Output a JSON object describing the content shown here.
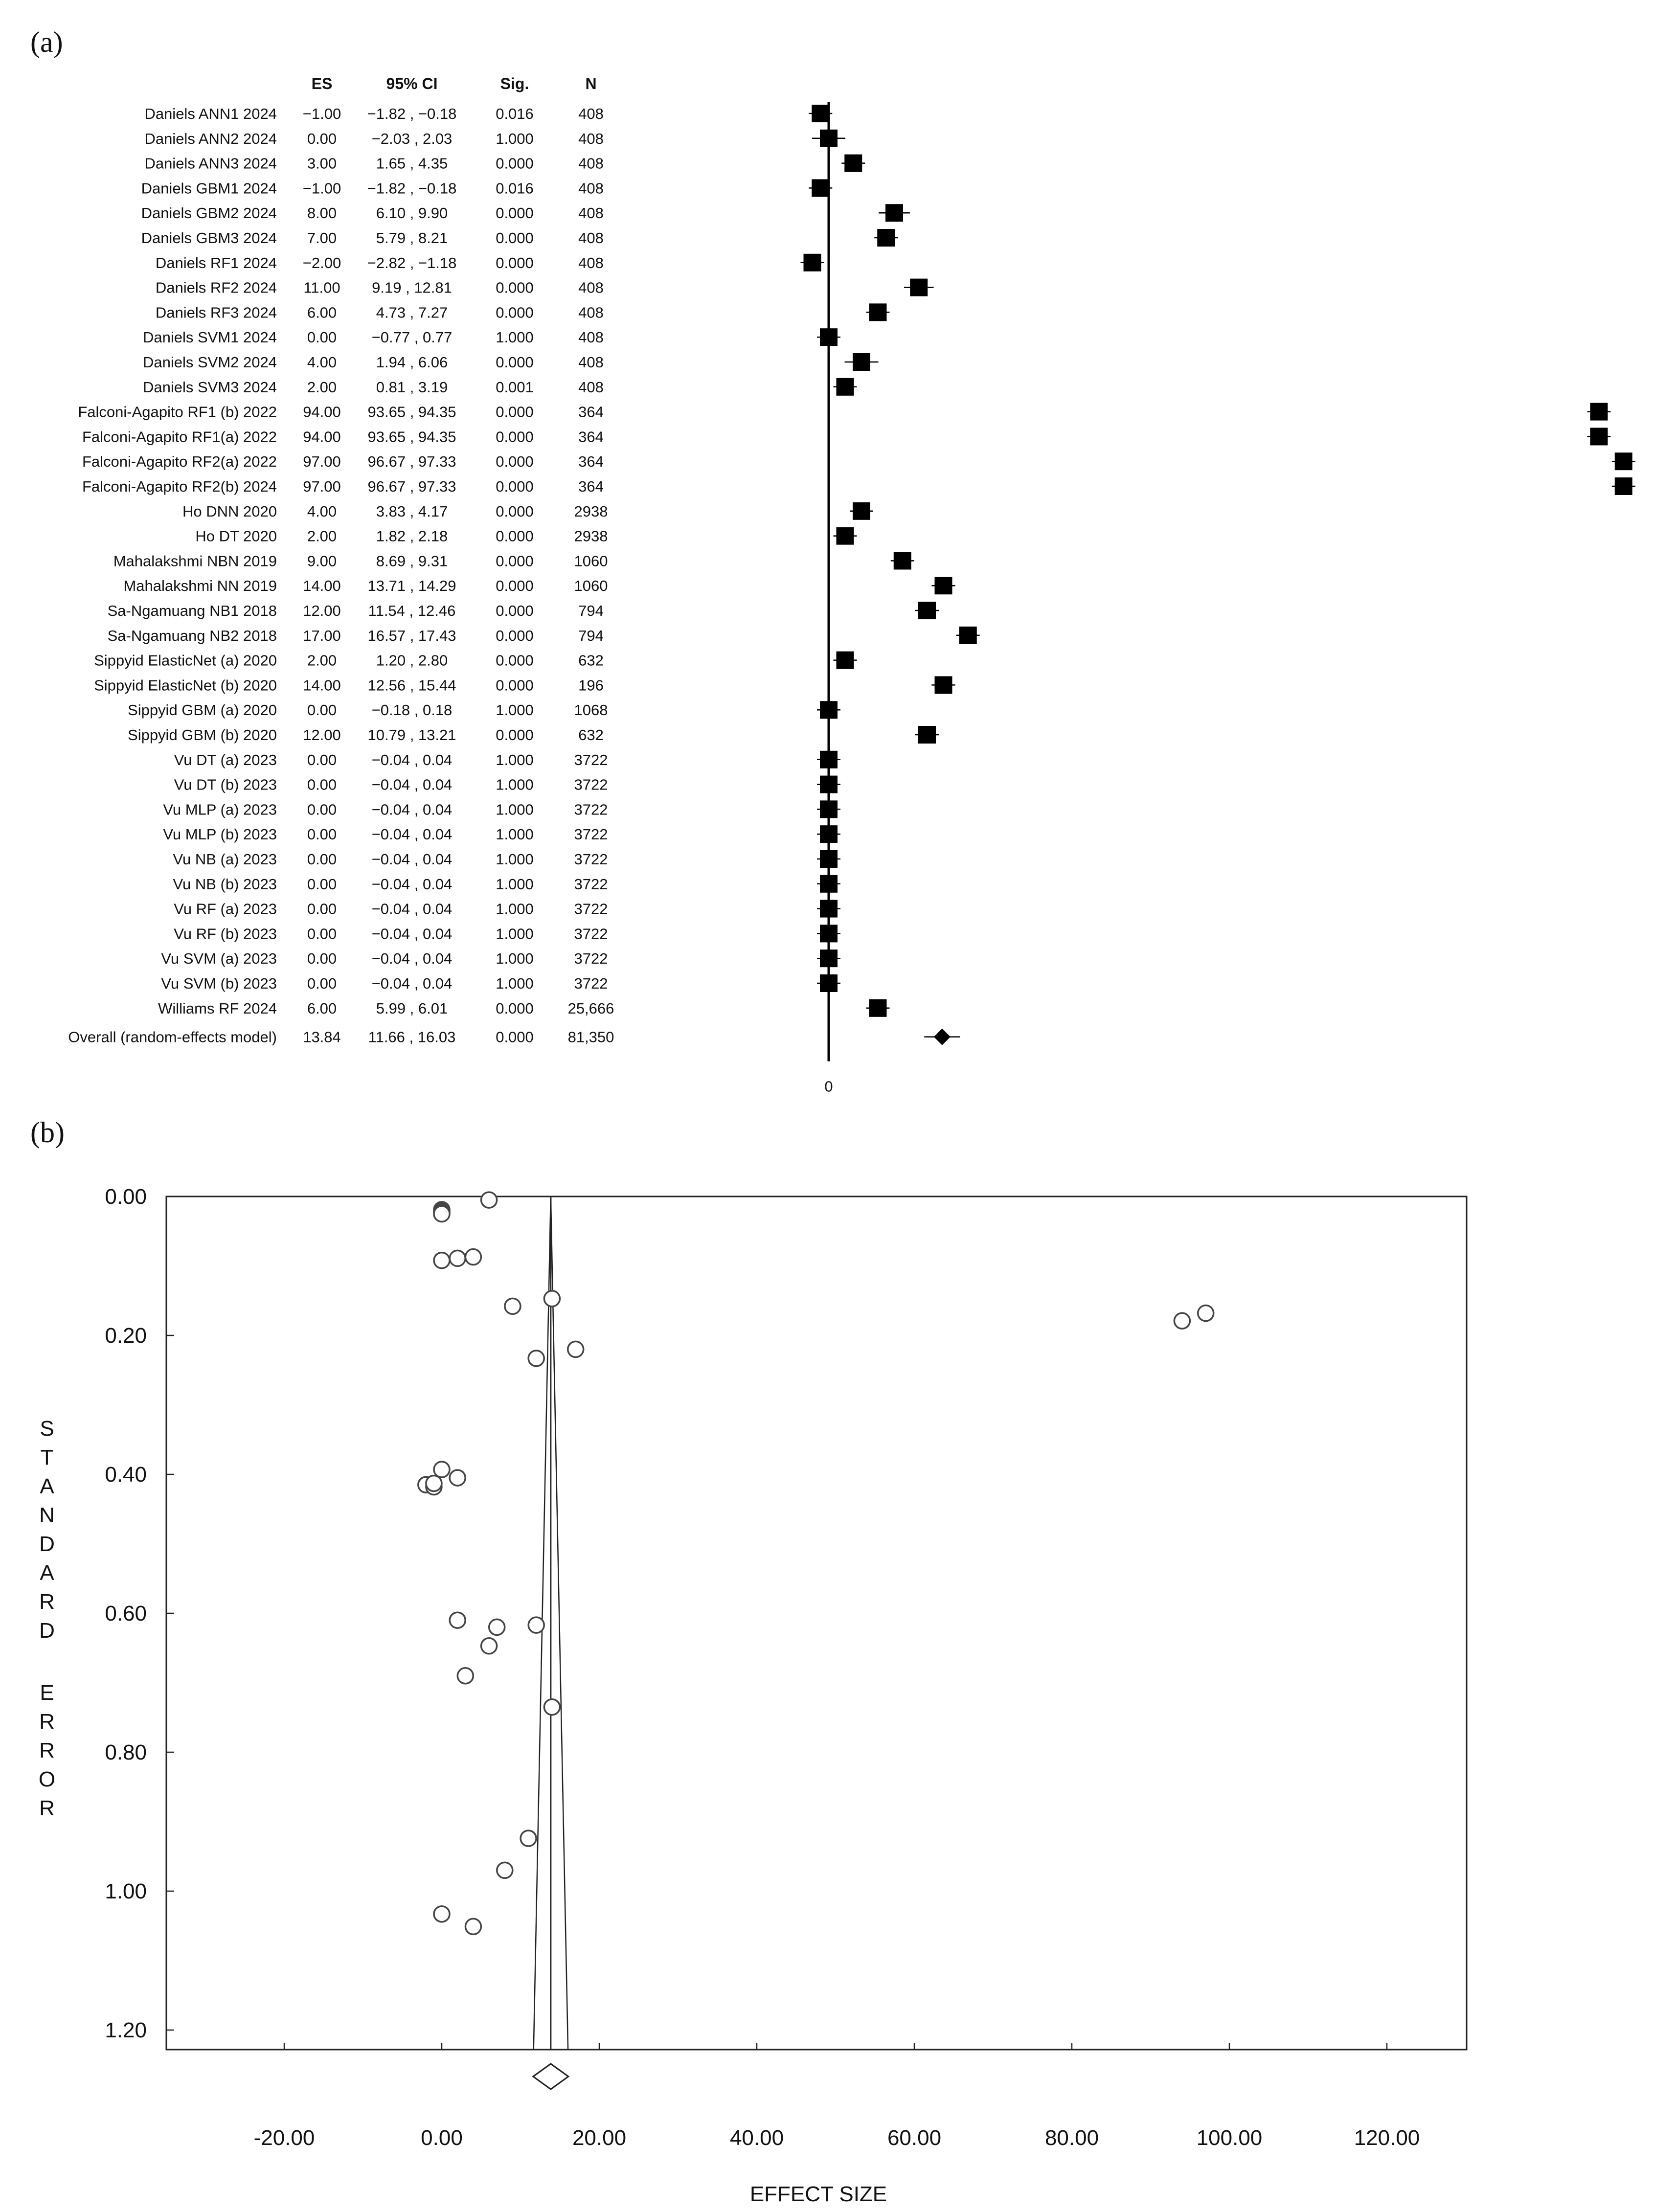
{
  "panel_a_label": "(a)",
  "panel_b_label": "(b)",
  "chart_data": [
    {
      "type": "table",
      "columns": [
        "ES",
        "95% CI",
        "Sig.",
        "N"
      ],
      "zero_label": "0",
      "rows": [
        {
          "study": "Daniels ANN1 2024",
          "es": -1.0,
          "ci": [
            -1.82,
            -0.18
          ],
          "es_text": "−1.00",
          "ci_text": "−1.82 , −0.18",
          "sig": "0.016",
          "n": "408"
        },
        {
          "study": "Daniels ANN2 2024",
          "es": 0.0,
          "ci": [
            -2.03,
            2.03
          ],
          "es_text": "0.00",
          "ci_text": "−2.03 , 2.03",
          "sig": "1.000",
          "n": "408"
        },
        {
          "study": "Daniels ANN3 2024",
          "es": 3.0,
          "ci": [
            1.65,
            4.35
          ],
          "es_text": "3.00",
          "ci_text": "1.65 , 4.35",
          "sig": "0.000",
          "n": "408"
        },
        {
          "study": "Daniels GBM1 2024",
          "es": -1.0,
          "ci": [
            -1.82,
            -0.18
          ],
          "es_text": "−1.00",
          "ci_text": "−1.82 , −0.18",
          "sig": "0.016",
          "n": "408"
        },
        {
          "study": "Daniels GBM2 2024",
          "es": 8.0,
          "ci": [
            6.1,
            9.9
          ],
          "es_text": "8.00",
          "ci_text": "6.10 , 9.90",
          "sig": "0.000",
          "n": "408"
        },
        {
          "study": "Daniels GBM3 2024",
          "es": 7.0,
          "ci": [
            5.79,
            8.21
          ],
          "es_text": "7.00",
          "ci_text": "5.79 , 8.21",
          "sig": "0.000",
          "n": "408"
        },
        {
          "study": "Daniels RF1 2024",
          "es": -2.0,
          "ci": [
            -2.82,
            -1.18
          ],
          "es_text": "−2.00",
          "ci_text": "−2.82 , −1.18",
          "sig": "0.000",
          "n": "408"
        },
        {
          "study": "Daniels RF2 2024",
          "es": 11.0,
          "ci": [
            9.19,
            12.81
          ],
          "es_text": "11.00",
          "ci_text": "9.19 , 12.81",
          "sig": "0.000",
          "n": "408"
        },
        {
          "study": "Daniels RF3 2024",
          "es": 6.0,
          "ci": [
            4.73,
            7.27
          ],
          "es_text": "6.00",
          "ci_text": "4.73 , 7.27",
          "sig": "0.000",
          "n": "408"
        },
        {
          "study": "Daniels SVM1 2024",
          "es": 0.0,
          "ci": [
            -0.77,
            0.77
          ],
          "es_text": "0.00",
          "ci_text": "−0.77 , 0.77",
          "sig": "1.000",
          "n": "408"
        },
        {
          "study": "Daniels SVM2 2024",
          "es": 4.0,
          "ci": [
            1.94,
            6.06
          ],
          "es_text": "4.00",
          "ci_text": "1.94 , 6.06",
          "sig": "0.000",
          "n": "408"
        },
        {
          "study": "Daniels SVM3 2024",
          "es": 2.0,
          "ci": [
            0.81,
            3.19
          ],
          "es_text": "2.00",
          "ci_text": "0.81 , 3.19",
          "sig": "0.001",
          "n": "408"
        },
        {
          "study": "Falconi-Agapito RF1 (b) 2022",
          "es": 94.0,
          "ci": [
            93.65,
            94.35
          ],
          "es_text": "94.00",
          "ci_text": "93.65 , 94.35",
          "sig": "0.000",
          "n": "364"
        },
        {
          "study": "Falconi-Agapito RF1(a) 2022",
          "es": 94.0,
          "ci": [
            93.65,
            94.35
          ],
          "es_text": "94.00",
          "ci_text": "93.65 , 94.35",
          "sig": "0.000",
          "n": "364"
        },
        {
          "study": "Falconi-Agapito RF2(a) 2022",
          "es": 97.0,
          "ci": [
            96.67,
            97.33
          ],
          "es_text": "97.00",
          "ci_text": "96.67 , 97.33",
          "sig": "0.000",
          "n": "364"
        },
        {
          "study": "Falconi-Agapito RF2(b) 2024",
          "es": 97.0,
          "ci": [
            96.67,
            97.33
          ],
          "es_text": "97.00",
          "ci_text": "96.67 , 97.33",
          "sig": "0.000",
          "n": "364"
        },
        {
          "study": "Ho DNN 2020",
          "es": 4.0,
          "ci": [
            3.83,
            4.17
          ],
          "es_text": "4.00",
          "ci_text": "3.83 , 4.17",
          "sig": "0.000",
          "n": "2938"
        },
        {
          "study": "Ho DT 2020",
          "es": 2.0,
          "ci": [
            1.82,
            2.18
          ],
          "es_text": "2.00",
          "ci_text": "1.82 , 2.18",
          "sig": "0.000",
          "n": "2938"
        },
        {
          "study": "Mahalakshmi NBN 2019",
          "es": 9.0,
          "ci": [
            8.69,
            9.31
          ],
          "es_text": "9.00",
          "ci_text": "8.69 , 9.31",
          "sig": "0.000",
          "n": "1060"
        },
        {
          "study": "Mahalakshmi NN  2019",
          "es": 14.0,
          "ci": [
            13.71,
            14.29
          ],
          "es_text": "14.00",
          "ci_text": "13.71 , 14.29",
          "sig": "0.000",
          "n": "1060"
        },
        {
          "study": "Sa-Ngamuang NB1 2018",
          "es": 12.0,
          "ci": [
            11.54,
            12.46
          ],
          "es_text": "12.00",
          "ci_text": "11.54 , 12.46",
          "sig": "0.000",
          "n": "794"
        },
        {
          "study": "Sa-Ngamuang NB2 2018",
          "es": 17.0,
          "ci": [
            16.57,
            17.43
          ],
          "es_text": "17.00",
          "ci_text": "16.57 , 17.43",
          "sig": "0.000",
          "n": "794"
        },
        {
          "study": "Sippyid ElasticNet (a) 2020",
          "es": 2.0,
          "ci": [
            1.2,
            2.8
          ],
          "es_text": "2.00",
          "ci_text": "1.20 , 2.80",
          "sig": "0.000",
          "n": "632"
        },
        {
          "study": "Sippyid ElasticNet (b) 2020",
          "es": 14.0,
          "ci": [
            12.56,
            15.44
          ],
          "es_text": "14.00",
          "ci_text": "12.56 , 15.44",
          "sig": "0.000",
          "n": "196"
        },
        {
          "study": "Sippyid GBM (a) 2020",
          "es": 0.0,
          "ci": [
            -0.18,
            0.18
          ],
          "es_text": "0.00",
          "ci_text": "−0.18 , 0.18",
          "sig": "1.000",
          "n": "1068"
        },
        {
          "study": "Sippyid GBM (b) 2020",
          "es": 12.0,
          "ci": [
            10.79,
            13.21
          ],
          "es_text": "12.00",
          "ci_text": "10.79 , 13.21",
          "sig": "0.000",
          "n": "632"
        },
        {
          "study": "Vu DT (a) 2023",
          "es": 0.0,
          "ci": [
            -0.04,
            0.04
          ],
          "es_text": "0.00",
          "ci_text": "−0.04 , 0.04",
          "sig": "1.000",
          "n": "3722"
        },
        {
          "study": "Vu DT (b) 2023",
          "es": 0.0,
          "ci": [
            -0.04,
            0.04
          ],
          "es_text": "0.00",
          "ci_text": "−0.04 , 0.04",
          "sig": "1.000",
          "n": "3722"
        },
        {
          "study": "Vu MLP (a) 2023",
          "es": 0.0,
          "ci": [
            -0.04,
            0.04
          ],
          "es_text": "0.00",
          "ci_text": "−0.04 , 0.04",
          "sig": "1.000",
          "n": "3722"
        },
        {
          "study": "Vu MLP (b) 2023",
          "es": 0.0,
          "ci": [
            -0.04,
            0.04
          ],
          "es_text": "0.00",
          "ci_text": "−0.04 , 0.04",
          "sig": "1.000",
          "n": "3722"
        },
        {
          "study": "Vu NB (a) 2023",
          "es": 0.0,
          "ci": [
            -0.04,
            0.04
          ],
          "es_text": "0.00",
          "ci_text": "−0.04 , 0.04",
          "sig": "1.000",
          "n": "3722"
        },
        {
          "study": "Vu NB (b) 2023",
          "es": 0.0,
          "ci": [
            -0.04,
            0.04
          ],
          "es_text": "0.00",
          "ci_text": "−0.04 , 0.04",
          "sig": "1.000",
          "n": "3722"
        },
        {
          "study": "Vu RF (a) 2023",
          "es": 0.0,
          "ci": [
            -0.04,
            0.04
          ],
          "es_text": "0.00",
          "ci_text": "−0.04 , 0.04",
          "sig": "1.000",
          "n": "3722"
        },
        {
          "study": "Vu RF (b) 2023",
          "es": 0.0,
          "ci": [
            -0.04,
            0.04
          ],
          "es_text": "0.00",
          "ci_text": "−0.04 , 0.04",
          "sig": "1.000",
          "n": "3722"
        },
        {
          "study": "Vu SVM (a) 2023",
          "es": 0.0,
          "ci": [
            -0.04,
            0.04
          ],
          "es_text": "0.00",
          "ci_text": "−0.04 , 0.04",
          "sig": "1.000",
          "n": "3722"
        },
        {
          "study": "Vu SVM (b) 2023",
          "es": 0.0,
          "ci": [
            -0.04,
            0.04
          ],
          "es_text": "0.00",
          "ci_text": "−0.04 , 0.04",
          "sig": "1.000",
          "n": "3722"
        },
        {
          "study": "Williams RF 2024",
          "es": 6.0,
          "ci": [
            5.99,
            6.01
          ],
          "es_text": "6.00",
          "ci_text": "5.99 , 6.01",
          "sig": "0.000",
          "n": "25,666"
        }
      ],
      "overall": {
        "study": "Overall (random-effects model)",
        "es": 13.84,
        "ci": [
          11.66,
          16.03
        ],
        "es_text": "13.84",
        "ci_text": "11.66 , 16.03",
        "sig": "0.000",
        "n": "81,350"
      }
    },
    {
      "type": "scatter",
      "xlabel": "EFFECT SIZE",
      "ylabel": "STANDARD ERROR",
      "xlim": [
        -35,
        130
      ],
      "ylim": [
        0,
        1.23
      ],
      "y_inverted": true,
      "x_ticks": [
        "-20.00",
        "0.00",
        "20.00",
        "40.00",
        "60.00",
        "80.00",
        "100.00",
        "120.00"
      ],
      "y_ticks": [
        "0.00",
        "0.20",
        "0.40",
        "0.60",
        "0.80",
        "1.00",
        "1.20"
      ],
      "pooled_effect": 13.84,
      "pooled_ci": [
        11.66,
        16.03
      ],
      "points": [
        {
          "x": 6.0,
          "y": 0.005
        },
        {
          "x": 0.0,
          "y": 0.019
        },
        {
          "x": 0.0,
          "y": 0.021
        },
        {
          "x": 0.0,
          "y": 0.023
        },
        {
          "x": 0.0,
          "y": 0.025
        },
        {
          "x": 0.0,
          "y": 0.092
        },
        {
          "x": 2.0,
          "y": 0.089
        },
        {
          "x": 4.0,
          "y": 0.087
        },
        {
          "x": 14.0,
          "y": 0.147
        },
        {
          "x": 9.0,
          "y": 0.158
        },
        {
          "x": 97.0,
          "y": 0.168
        },
        {
          "x": 94.0,
          "y": 0.179
        },
        {
          "x": 17.0,
          "y": 0.22
        },
        {
          "x": 12.0,
          "y": 0.233
        },
        {
          "x": 0.0,
          "y": 0.393
        },
        {
          "x": 2.0,
          "y": 0.405
        },
        {
          "x": -2.0,
          "y": 0.415
        },
        {
          "x": -1.0,
          "y": 0.418
        },
        {
          "x": -1.0,
          "y": 0.413
        },
        {
          "x": 2.0,
          "y": 0.61
        },
        {
          "x": 7.0,
          "y": 0.62
        },
        {
          "x": 12.0,
          "y": 0.617
        },
        {
          "x": 6.0,
          "y": 0.647
        },
        {
          "x": 3.0,
          "y": 0.69
        },
        {
          "x": 14.0,
          "y": 0.735
        },
        {
          "x": 11.0,
          "y": 0.924
        },
        {
          "x": 8.0,
          "y": 0.97
        },
        {
          "x": 0.0,
          "y": 1.033
        },
        {
          "x": 4.0,
          "y": 1.051
        }
      ]
    }
  ]
}
